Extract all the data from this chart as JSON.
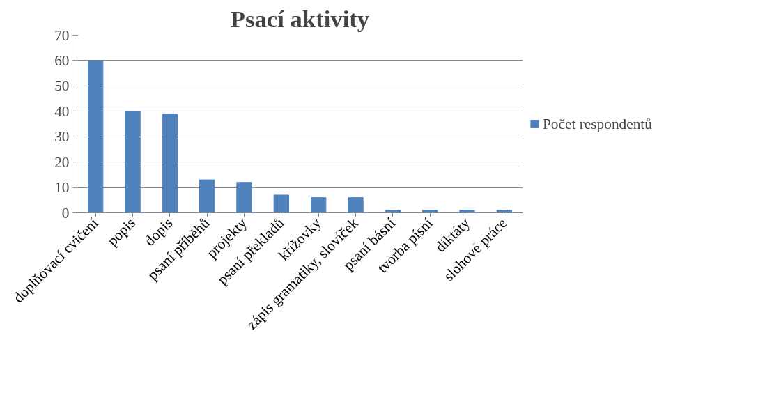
{
  "chart_data": {
    "type": "bar",
    "title": "Psací aktivity",
    "categories": [
      "doplňovací cvičení",
      "popis",
      "dopis",
      "psaní příběhů",
      "projekty",
      "psaní překladů",
      "křížovky",
      "zápis gramatiky, slovíček",
      "psaní básní",
      "tvorba písní",
      "diktáty",
      "slohové práce"
    ],
    "series": [
      {
        "name": "Počet respondentů",
        "color": "#4f81bd",
        "values": [
          60,
          40,
          39,
          13,
          12,
          7,
          6,
          6,
          1,
          1,
          1,
          1
        ]
      }
    ],
    "ylim": [
      0,
      70
    ],
    "yticks": [
      0,
      10,
      20,
      30,
      40,
      50,
      60,
      70
    ],
    "grid": "y",
    "legend": "right"
  }
}
